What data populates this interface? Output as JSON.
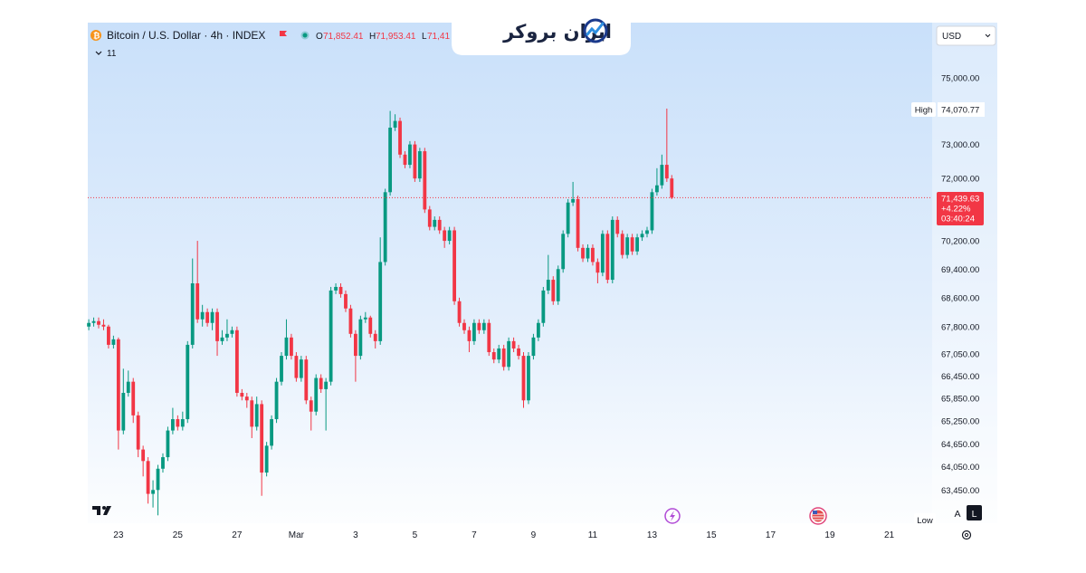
{
  "chart_data": {
    "type": "candlestick",
    "legend": {
      "symbol": "Bitcoin / U.S. Dollar · 4h · INDEX",
      "ohlc": [
        {
          "key": "O",
          "value": "71,852.41"
        },
        {
          "key": "H",
          "value": "71,953.41"
        },
        {
          "key": "L",
          "value": "71,41"
        }
      ],
      "indicators": "11"
    },
    "brand": "ایران بروکر",
    "currency": "USD",
    "high_label": {
      "text": "High",
      "value": "74,070.77"
    },
    "low_label": "Low",
    "last_label": {
      "price": "71,439.63",
      "change": "+4.22%",
      "countdown": "03:40:24"
    },
    "scale_buttons": [
      "A",
      "L"
    ],
    "log_scale": true,
    "up_color": "#089981",
    "down_color": "#f23645",
    "xlim": [
      -0.2,
      170.7
    ],
    "xticks": [
      {
        "value": 6,
        "label": "23"
      },
      {
        "value": 18,
        "label": "25"
      },
      {
        "value": 30,
        "label": "27"
      },
      {
        "value": 42,
        "label": "Mar"
      },
      {
        "value": 54,
        "label": "3"
      },
      {
        "value": 66,
        "label": "5"
      },
      {
        "value": 78,
        "label": "7"
      },
      {
        "value": 90,
        "label": "9"
      },
      {
        "value": 102,
        "label": "11"
      },
      {
        "value": 114,
        "label": "13"
      },
      {
        "value": 126,
        "label": "15"
      },
      {
        "value": 138,
        "label": "17"
      },
      {
        "value": 150,
        "label": "19"
      },
      {
        "value": 162,
        "label": "21"
      }
    ],
    "ylim": [
      62600,
      76700
    ],
    "yticks": [
      {
        "value": 75000,
        "label": "75,000.00"
      },
      {
        "value": 73000,
        "label": "73,000.00"
      },
      {
        "value": 72000,
        "label": "72,000.00"
      },
      {
        "value": 70200,
        "label": "70,200.00"
      },
      {
        "value": 69400,
        "label": "69,400.00"
      },
      {
        "value": 68600,
        "label": "68,600.00"
      },
      {
        "value": 67800,
        "label": "67,800.00"
      },
      {
        "value": 67050,
        "label": "67,050.00"
      },
      {
        "value": 66450,
        "label": "66,450.00"
      },
      {
        "value": 65850,
        "label": "65,850.00"
      },
      {
        "value": 65250,
        "label": "65,250.00"
      },
      {
        "value": 64650,
        "label": "64,650.00"
      },
      {
        "value": 64050,
        "label": "64,050.00"
      },
      {
        "value": 63450,
        "label": "63,450.00"
      }
    ],
    "grid": false,
    "open": [
      67800,
      67900,
      67950,
      67850,
      67800,
      67300,
      67450,
      65000,
      66000,
      66300,
      65400,
      64500,
      64200,
      63350,
      63450,
      64000,
      64300,
      65000,
      65300,
      65100,
      65300,
      67300,
      69000,
      68000,
      68200,
      67900,
      68200,
      67400,
      67500,
      67600,
      67700,
      66000,
      65900,
      65800,
      65100,
      65700,
      63900,
      64600,
      65300,
      66300,
      67000,
      67500,
      67000,
      66400,
      66900,
      65800,
      65500,
      66400,
      66100,
      66300,
      68800,
      68900,
      68700,
      68300,
      67600,
      67000,
      68000,
      68050,
      67600,
      67400,
      69600,
      71600,
      73500,
      73700,
      72700,
      72400,
      73000,
      72000,
      72800,
      71100,
      70600,
      70800,
      70500,
      70200,
      70500,
      68500,
      67900,
      67700,
      67400,
      67900,
      67700,
      67900,
      67100,
      66900,
      67200,
      66700,
      67400,
      67200,
      67000,
      65800,
      67000,
      67500,
      67900,
      68800,
      69100,
      68500,
      69400,
      70400,
      71300,
      71400,
      70000,
      69700,
      70000,
      69600,
      69300,
      70400,
      69100,
      70800,
      70400,
      69800,
      70300,
      69900,
      70300,
      70400,
      70500,
      71600,
      71800,
      72400,
      72000
    ],
    "high": [
      68000,
      68050,
      68050,
      68000,
      67850,
      67550,
      67500,
      66650,
      66600,
      66400,
      65500,
      64600,
      64300,
      63700,
      64100,
      64400,
      65100,
      65600,
      65400,
      65500,
      67400,
      69700,
      70200,
      68400,
      68300,
      68300,
      68300,
      67700,
      68000,
      67800,
      67800,
      66100,
      66000,
      65900,
      65900,
      65800,
      64700,
      65400,
      66400,
      67100,
      68000,
      67600,
      67100,
      67000,
      67000,
      65900,
      66500,
      66500,
      66400,
      68900,
      69000,
      69000,
      68800,
      68400,
      67700,
      68100,
      68200,
      68100,
      67700,
      70300,
      71700,
      74000,
      73900,
      73800,
      72800,
      73100,
      73100,
      72900,
      72900,
      71200,
      70900,
      70900,
      70600,
      70600,
      70600,
      68600,
      68000,
      67800,
      68000,
      68000,
      68000,
      68000,
      67200,
      67300,
      67300,
      67500,
      67500,
      67300,
      67100,
      67100,
      67600,
      68000,
      68900,
      69800,
      69200,
      69500,
      70500,
      71400,
      71900,
      71500,
      70100,
      70100,
      70100,
      69700,
      70500,
      70500,
      70900,
      70900,
      70500,
      70400,
      70400,
      70400,
      70500,
      70600,
      71700,
      72300,
      72700,
      74070.77,
      72100
    ],
    "low": [
      67700,
      67800,
      67750,
      67700,
      67200,
      67200,
      64500,
      64900,
      65900,
      65200,
      64300,
      63800,
      63100,
      63000,
      62800,
      63900,
      64200,
      64900,
      65000,
      65000,
      65200,
      67200,
      67900,
      67800,
      67800,
      67700,
      67000,
      67300,
      67400,
      67500,
      65900,
      65800,
      65600,
      64800,
      65000,
      63300,
      63800,
      64500,
      65200,
      66200,
      66900,
      66900,
      66300,
      66300,
      65700,
      65000,
      65400,
      66000,
      65000,
      66200,
      68700,
      68600,
      68200,
      67500,
      66300,
      66900,
      67900,
      67500,
      67200,
      67300,
      69500,
      71500,
      73400,
      72600,
      72300,
      72300,
      71900,
      71900,
      71000,
      70500,
      70500,
      70400,
      70000,
      70100,
      68400,
      67800,
      67600,
      67100,
      67300,
      67600,
      67600,
      67000,
      66800,
      66800,
      66600,
      66600,
      67100,
      66900,
      65600,
      65700,
      66900,
      67400,
      67800,
      68700,
      68400,
      68400,
      69300,
      70300,
      71200,
      69900,
      69600,
      69600,
      69500,
      69000,
      69200,
      69000,
      69000,
      70300,
      69700,
      69700,
      69800,
      69800,
      70200,
      70300,
      70400,
      71500,
      71700,
      71900,
      71400
    ],
    "close": [
      67900,
      67950,
      67850,
      67800,
      67300,
      67450,
      65000,
      66000,
      66300,
      65400,
      64500,
      64200,
      63350,
      63450,
      64000,
      64300,
      65000,
      65300,
      65100,
      65300,
      67300,
      69000,
      68000,
      68200,
      67900,
      68200,
      67400,
      67500,
      67600,
      67700,
      66000,
      65900,
      65800,
      65100,
      65700,
      63900,
      64600,
      65300,
      66300,
      67000,
      67500,
      67000,
      66400,
      66900,
      65800,
      65500,
      66400,
      66100,
      66300,
      68800,
      68900,
      68700,
      68300,
      67600,
      67000,
      68000,
      68050,
      67600,
      67400,
      69600,
      71600,
      73500,
      73700,
      72700,
      72400,
      73000,
      72000,
      72800,
      71100,
      70600,
      70800,
      70500,
      70200,
      70500,
      68500,
      67900,
      67700,
      67400,
      67900,
      67700,
      67900,
      67100,
      66900,
      67200,
      66700,
      67400,
      67200,
      67000,
      65800,
      67000,
      67500,
      67900,
      68800,
      69100,
      68500,
      69400,
      70400,
      71300,
      71400,
      70000,
      69700,
      70000,
      69600,
      69300,
      70400,
      69100,
      70800,
      70400,
      69800,
      70300,
      69900,
      70300,
      70400,
      70500,
      71600,
      71800,
      72400,
      72000,
      71439.63
    ]
  }
}
